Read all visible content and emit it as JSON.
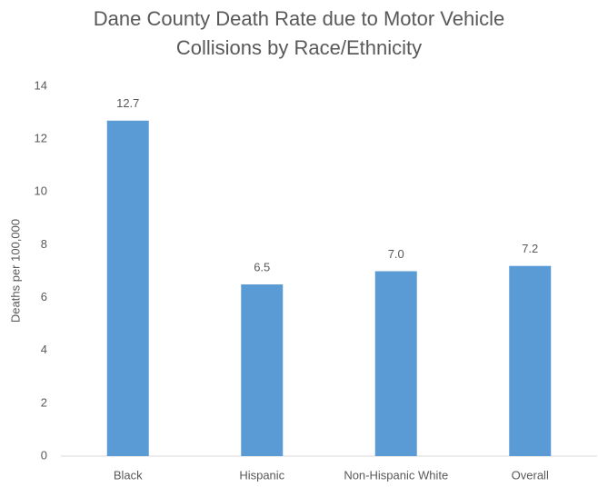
{
  "chart_data": {
    "type": "bar",
    "title": [
      "Dane County Death Rate due to Motor Vehicle",
      "Collisions by Race/Ethnicity"
    ],
    "ylabel": "Deaths per 100,000",
    "categories": [
      "Black",
      "Hispanic",
      "Non-Hispanic White",
      "Overall"
    ],
    "values": [
      12.7,
      6.5,
      7.0,
      7.2
    ],
    "value_labels": [
      "12.7",
      "6.5",
      "7.0",
      "7.2"
    ],
    "color": "#5b9bd5",
    "ylim": [
      0,
      14
    ],
    "yticks": [
      0,
      2,
      4,
      6,
      8,
      10,
      12,
      14
    ],
    "grid": false
  }
}
